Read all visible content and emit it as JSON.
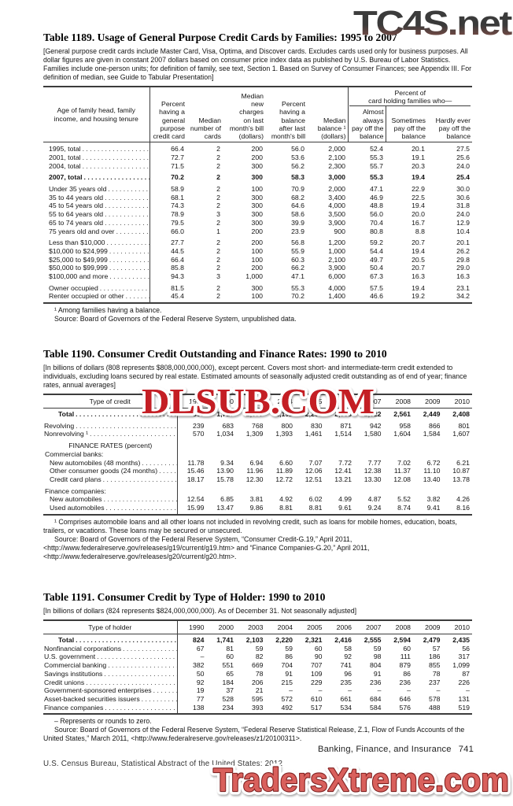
{
  "watermarks": {
    "top_right": "TC4S.net",
    "middle": "DLSUB.COM",
    "bottom": "TradersXtreme.com"
  },
  "colors": {
    "watermark_dark_gradient_top": "#3d3d3d",
    "watermark_dark_gradient_bottom": "#95544b",
    "watermark_red": "#c41e24",
    "watermark_salmon_fill": "#d9605c",
    "watermark_salmon_outline": "#7e1f1f"
  },
  "footer": {
    "section": "Banking, Finance, and Insurance",
    "page": "741",
    "credit": "U.S. Census Bureau, Statistical Abstract of the United States: 2012"
  },
  "table1189": {
    "title": "Table 1189. Usage of General Purpose Credit Cards by Families: 1995 to 2007",
    "note": "[General purpose credit cards include Master Card, Visa, Optima, and Discover cards. Excludes cards used only for business purposes. All dollar figures are given in constant 2007 dollars based on consumer price index data as published by U.S. Bureau of Labor Statistics. Families include one-person units; for definition of family, see text, Section 1. Based on Survey of Consumer Finances; see Appendix III. For definition of median, see Guide to Tabular Presentation]",
    "stub_header": "Age of family head, family\nincome, and housing tenure",
    "col_headers": [
      "Percent\nhaving a\ngeneral\npurpose\ncredit card",
      "Median\nnumber of\ncards",
      "Median\nnew\ncharges\non last\nmonth's bill\n(dollars)",
      "Percent\nhaving a\nbalance\nafter last\nmonth's bill",
      "Median\nbalance ¹\n(dollars)"
    ],
    "spanner_label": "Percent of\ncard holding families who—",
    "spanner_cols": [
      "Almost\nalways\npay off the\nbalance",
      "Sometimes\npay off the\nbalance",
      "Hardly ever\npay off the\nbalance"
    ],
    "rows": [
      {
        "label": "1995, total",
        "values": [
          "66.4",
          "2",
          "200",
          "56.0",
          "2,000",
          "52.4",
          "20.1",
          "27.5"
        ]
      },
      {
        "label": "2001, total",
        "values": [
          "72.7",
          "2",
          "200",
          "53.6",
          "2,100",
          "55.3",
          "19.1",
          "25.6"
        ]
      },
      {
        "label": "2004, total",
        "values": [
          "71.5",
          "2",
          "300",
          "56.2",
          "2,300",
          "55.7",
          "20.3",
          "24.0"
        ]
      },
      {
        "label": "2007, total",
        "bold": true,
        "sp": true,
        "values": [
          "70.2",
          "2",
          "300",
          "58.3",
          "3,000",
          "55.3",
          "19.4",
          "25.4"
        ]
      },
      {
        "label": "Under 35 years old",
        "sp": true,
        "values": [
          "58.9",
          "2",
          "100",
          "70.9",
          "2,000",
          "47.1",
          "22.9",
          "30.0"
        ]
      },
      {
        "label": "35 to 44 years old",
        "values": [
          "68.1",
          "2",
          "300",
          "68.2",
          "3,400",
          "46.9",
          "22.5",
          "30.6"
        ]
      },
      {
        "label": "45 to 54 years old",
        "values": [
          "74.3",
          "2",
          "300",
          "64.6",
          "4,000",
          "48.8",
          "19.4",
          "31.8"
        ]
      },
      {
        "label": "55 to 64 years old",
        "values": [
          "78.9",
          "3",
          "300",
          "58.6",
          "3,500",
          "56.0",
          "20.0",
          "24.0"
        ]
      },
      {
        "label": "65 to 74 years old",
        "values": [
          "79.5",
          "2",
          "300",
          "39.9",
          "3,900",
          "70.4",
          "16.7",
          "12.9"
        ]
      },
      {
        "label": "75 years old and over",
        "values": [
          "66.0",
          "1",
          "200",
          "23.9",
          "900",
          "80.8",
          "8.8",
          "10.4"
        ]
      },
      {
        "label": "Less than $10,000",
        "sp": true,
        "values": [
          "27.7",
          "2",
          "200",
          "56.8",
          "1,200",
          "59.2",
          "20.7",
          "20.1"
        ]
      },
      {
        "label": "$10,000 to $24,999",
        "values": [
          "44.5",
          "2",
          "100",
          "55.9",
          "1,000",
          "54.4",
          "19.4",
          "26.2"
        ]
      },
      {
        "label": "$25,000 to $49,999",
        "values": [
          "66.4",
          "2",
          "100",
          "60.3",
          "2,100",
          "49.7",
          "20.5",
          "29.8"
        ]
      },
      {
        "label": "$50,000 to $99,999",
        "values": [
          "85.8",
          "2",
          "200",
          "66.2",
          "3,900",
          "50.4",
          "20.7",
          "29.0"
        ]
      },
      {
        "label": "$100,000 and more",
        "values": [
          "94.3",
          "3",
          "1,000",
          "47.1",
          "6,000",
          "67.3",
          "16.3",
          "16.3"
        ]
      },
      {
        "label": "Owner occupied",
        "sp": true,
        "values": [
          "81.5",
          "2",
          "300",
          "55.3",
          "4,000",
          "57.5",
          "19.4",
          "23.1"
        ]
      },
      {
        "label": "Renter occupied or other",
        "values": [
          "45.4",
          "2",
          "100",
          "70.2",
          "1,400",
          "46.6",
          "19.2",
          "34.2"
        ]
      }
    ],
    "footnote": "¹ Among families having a balance.",
    "source": "Source: Board of Governors of the Federal Reserve System, unpublished data."
  },
  "table1190": {
    "title": "Table 1190. Consumer Credit Outstanding and Finance Rates: 1990 to 2010",
    "note": "[In billions of dollars (808 represents $808,000,000,000), except percent. Covers most short- and intermediate-term credit extended to individuals, excluding loans secured by real estate. Estimated amounts of seasonally adjusted credit outstanding as of end of year; finance rates, annual averages]",
    "stub_header": "Type of credit",
    "years": [
      "1990",
      "2000",
      "2003",
      "2004",
      "2005",
      "2006",
      "2007",
      "2008",
      "2009",
      "2010"
    ],
    "rows": [
      {
        "label": "Total",
        "bold": true,
        "indent": 2,
        "values": [
          "808",
          "1,717",
          "2,077",
          "2,192",
          "2,291",
          "2,385",
          "2,522",
          "2,561",
          "2,449",
          "2,408"
        ]
      },
      {
        "label": "Revolving",
        "sp": true,
        "values": [
          "239",
          "683",
          "768",
          "800",
          "830",
          "871",
          "942",
          "958",
          "866",
          "801"
        ]
      },
      {
        "label": "Nonrevolving ¹",
        "values": [
          "570",
          "1,034",
          "1,309",
          "1,393",
          "1,461",
          "1,514",
          "1,580",
          "1,604",
          "1,584",
          "1,607"
        ]
      },
      {
        "label": "FINANCE RATES (percent)",
        "type": "subhead",
        "sp": true
      },
      {
        "label": "Commercial banks:",
        "type": "grouplabel"
      },
      {
        "label": "New automobiles (48 months)",
        "indent": 1,
        "values": [
          "11.78",
          "9.34",
          "6.94",
          "6.60",
          "7.07",
          "7.72",
          "7.77",
          "7.02",
          "6.72",
          "6.21"
        ]
      },
      {
        "label": "Other consumer goods (24 months)",
        "indent": 1,
        "values": [
          "15.46",
          "13.90",
          "11.96",
          "11.89",
          "12.06",
          "12.41",
          "12.38",
          "11.37",
          "11.10",
          "10.87"
        ]
      },
      {
        "label": "Credit card plans",
        "indent": 1,
        "values": [
          "18.17",
          "15.78",
          "12.30",
          "12.72",
          "12.51",
          "13.21",
          "13.30",
          "12.08",
          "13.40",
          "13.78"
        ]
      },
      {
        "label": "Finance companies:",
        "type": "grouplabel",
        "sp": true
      },
      {
        "label": "New automobiles",
        "indent": 1,
        "values": [
          "12.54",
          "6.85",
          "3.81",
          "4.92",
          "6.02",
          "4.99",
          "4.87",
          "5.52",
          "3.82",
          "4.26"
        ]
      },
      {
        "label": "Used automobiles",
        "indent": 1,
        "values": [
          "15.99",
          "13.47",
          "9.86",
          "8.81",
          "8.81",
          "9.61",
          "9.24",
          "8.74",
          "9.41",
          "8.16"
        ]
      }
    ],
    "footnote": "¹ Comprises automobile loans and all other loans not included in revolving credit, such as loans for mobile homes, education, boats, trailers, or vacations. These loans may be secured or unsecured.",
    "source": "Source: Board of Governors of the Federal Reserve System, “Consumer Credit-G.19,” April 2011, <http://www.federalreserve.gov/releases/g19/current/g19.htm> and “Finance Companies-G.20,” April 2011, <http://www.federalreserve.gov/releases/g20/current/g20.htm>."
  },
  "table1191": {
    "title": "Table 1191. Consumer Credit by Type of Holder: 1990 to 2010",
    "note": "[In billions of dollars (824 represents $824,000,000,000). As of December 31. Not seasonally adjusted]",
    "stub_header": "Type of holder",
    "years": [
      "1990",
      "2000",
      "2003",
      "2004",
      "2005",
      "2006",
      "2007",
      "2008",
      "2009",
      "2010"
    ],
    "rows": [
      {
        "label": "Total",
        "bold": true,
        "indent": 2,
        "values": [
          "824",
          "1,741",
          "2,103",
          "2,220",
          "2,321",
          "2,416",
          "2,555",
          "2,594",
          "2,479",
          "2,435"
        ]
      },
      {
        "label": "Nonfinancial corporations",
        "values": [
          "67",
          "81",
          "59",
          "59",
          "60",
          "58",
          "59",
          "60",
          "57",
          "56"
        ]
      },
      {
        "label": "U.S. government",
        "values": [
          "–",
          "60",
          "82",
          "86",
          "90",
          "92",
          "98",
          "111",
          "186",
          "317"
        ]
      },
      {
        "label": "Commercial banking",
        "values": [
          "382",
          "551",
          "669",
          "704",
          "707",
          "741",
          "804",
          "879",
          "855",
          "1,099"
        ]
      },
      {
        "label": "Savings institutions",
        "values": [
          "50",
          "65",
          "78",
          "91",
          "109",
          "96",
          "91",
          "86",
          "78",
          "87"
        ]
      },
      {
        "label": "Credit unions",
        "values": [
          "92",
          "184",
          "206",
          "215",
          "229",
          "235",
          "236",
          "236",
          "237",
          "226"
        ]
      },
      {
        "label": "Government-sponsored enterprises",
        "values": [
          "19",
          "37",
          "21",
          "–",
          "–",
          "–",
          "–",
          "–",
          "–",
          "–"
        ]
      },
      {
        "label": "Asset-backed securities issuers",
        "values": [
          "77",
          "528",
          "595",
          "572",
          "610",
          "661",
          "684",
          "646",
          "578",
          "131"
        ]
      },
      {
        "label": "Finance companies",
        "values": [
          "138",
          "234",
          "393",
          "492",
          "517",
          "534",
          "584",
          "576",
          "488",
          "519"
        ]
      }
    ],
    "footnote": "– Represents or rounds to zero.",
    "source": "Source: Board of Governors of the Federal Reserve System, “Federal Reserve Statistical Release, Z.1, Flow of Funds Accounts of the United States,” March 2011, <http://www.federalreserve.gov/releases/z1/20100311>."
  }
}
